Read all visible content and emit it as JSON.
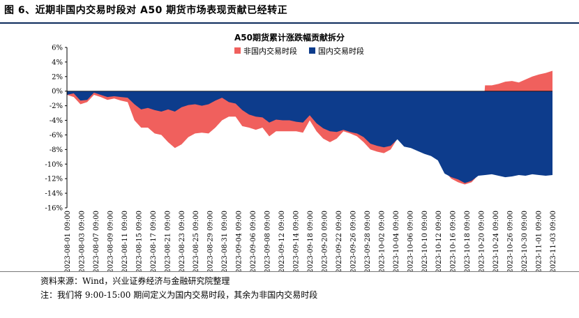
{
  "figure": {
    "title": "图 6、近期非国内交易时段对 A50 期货市场表现贡献已经转正",
    "source": "资料来源：Wind，兴业证券经济与金融研究院整理",
    "note": "注：我们将 9:00-15:00 期间定义为国内交易时段，其余为非国内交易时段"
  },
  "chart_data": {
    "type": "area",
    "title": "A50期货累计涨跌幅贡献拆分",
    "xlabel": "",
    "ylabel": "",
    "ylim": [
      -16,
      6
    ],
    "yticks": [
      "6%",
      "4%",
      "2%",
      "0%",
      "-2%",
      "-4%",
      "-6%",
      "-8%",
      "-10%",
      "-12%",
      "-14%",
      "-16%"
    ],
    "x_tick_labels": [
      "2023-08-01 09:00",
      "2023-08-03 09:00",
      "2023-08-07 09:00",
      "2023-08-09 09:00",
      "2023-08-11 09:00",
      "2023-08-15 09:00",
      "2023-08-17 09:00",
      "2023-08-21 09:00",
      "2023-08-23 09:00",
      "2023-08-25 09:00",
      "2023-08-29 09:00",
      "2023-08-31 09:00",
      "2023-09-04 09:00",
      "2023-09-06 09:00",
      "2023-09-08 09:00",
      "2023-09-12 09:00",
      "2023-09-14 09:00",
      "2023-09-18 09:00",
      "2023-09-20 09:00",
      "2023-09-22 09:00",
      "2023-09-26 09:00",
      "2023-09-28 09:00",
      "2023-10-02 09:00",
      "2023-10-04 09:00",
      "2023-10-06 09:00",
      "2023-10-10 09:00",
      "2023-10-12 09:00",
      "2023-10-16 09:00",
      "2023-10-18 09:00",
      "2023-10-20 09:00",
      "2023-10-24 09:00",
      "2023-10-26 09:00",
      "2023-10-30 09:00",
      "2023-11-01 09:00",
      "2023-11-03 09:00"
    ],
    "legend_position": "top-center",
    "grid": false,
    "series": [
      {
        "name": "非国内交易时段",
        "color": "#f0605d",
        "values": [
          -0.5,
          -0.8,
          -1.8,
          -1.5,
          -0.5,
          -0.8,
          -1.2,
          -1.0,
          -1.3,
          -1.5,
          -4.0,
          -5.0,
          -5.0,
          -5.8,
          -6.0,
          -7.0,
          -7.8,
          -7.3,
          -6.3,
          -5.8,
          -5.7,
          -5.8,
          -5.0,
          -4.0,
          -3.5,
          -3.5,
          -4.8,
          -5.0,
          -5.3,
          -5.0,
          -6.2,
          -5.5,
          -5.5,
          -5.5,
          -5.5,
          -5.7,
          -4.0,
          -5.5,
          -6.5,
          -7.0,
          -6.5,
          -5.5,
          -5.8,
          -6.2,
          -7.0,
          -8.0,
          -8.3,
          -8.5,
          -8.0,
          -6.5,
          -7.5,
          -7.5,
          -7.0,
          -7.5,
          -8.0,
          -9.0,
          -11.0,
          -12.0,
          -12.5,
          -12.8,
          -12.5,
          -11.5,
          0.8,
          0.8,
          1.0,
          1.3,
          1.4,
          1.2,
          1.6,
          2.0,
          2.3,
          2.5,
          2.8
        ]
      },
      {
        "name": "国内交易时段",
        "color": "#0d3c8c",
        "values": [
          -0.5,
          -0.3,
          -1.3,
          -1.2,
          -0.2,
          -0.5,
          -0.8,
          -0.7,
          -0.8,
          -0.9,
          -1.8,
          -2.5,
          -2.3,
          -2.6,
          -2.8,
          -2.5,
          -2.8,
          -2.2,
          -1.9,
          -1.8,
          -2.0,
          -1.8,
          -1.3,
          -0.9,
          -1.5,
          -1.7,
          -2.6,
          -3.2,
          -3.5,
          -3.6,
          -4.3,
          -3.9,
          -4.0,
          -4.0,
          -4.2,
          -4.3,
          -3.3,
          -4.4,
          -5.1,
          -5.5,
          -5.6,
          -5.3,
          -5.6,
          -5.8,
          -6.3,
          -7.2,
          -7.5,
          -7.7,
          -7.5,
          -6.6,
          -7.6,
          -7.8,
          -8.2,
          -8.6,
          -8.9,
          -9.5,
          -11.3,
          -11.8,
          -12.1,
          -12.6,
          -12.3,
          -11.6,
          -11.5,
          -11.4,
          -11.6,
          -11.8,
          -11.7,
          -11.5,
          -11.6,
          -11.4,
          -11.5,
          -11.6,
          -11.5
        ]
      }
    ]
  }
}
